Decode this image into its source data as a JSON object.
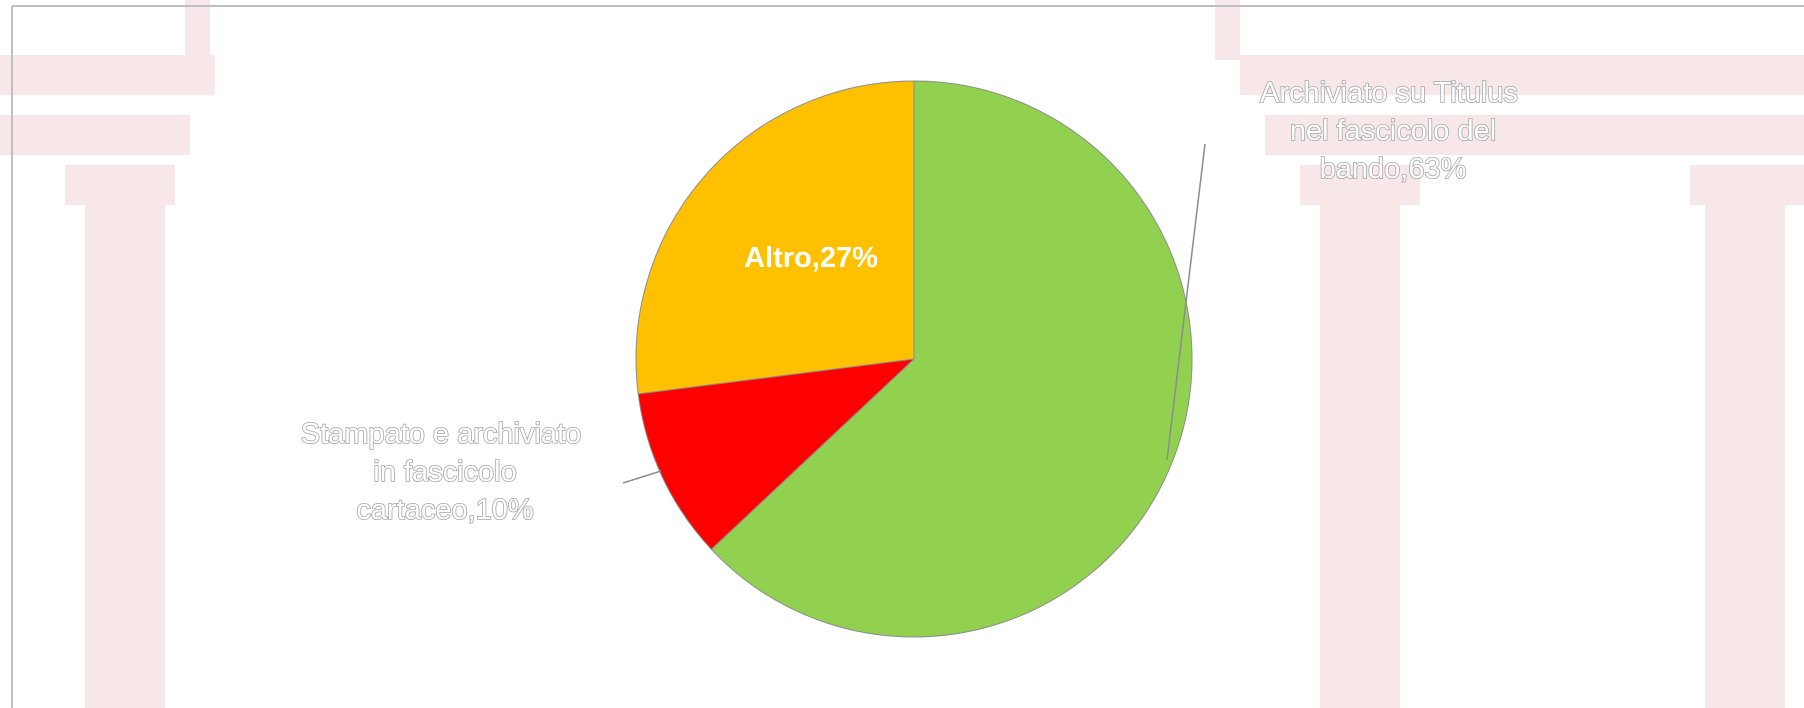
{
  "chart_data": {
    "type": "pie",
    "values": [
      63,
      10,
      27
    ],
    "value_labels": [
      "Archiviato su Titulus nel fascicolo del bando,63%",
      "Stampato e archiviato in fascicolo cartaceo,10%",
      "Altro,27%"
    ],
    "colors": [
      "#92d050",
      "#ff0000",
      "#ffc000"
    ]
  }
}
